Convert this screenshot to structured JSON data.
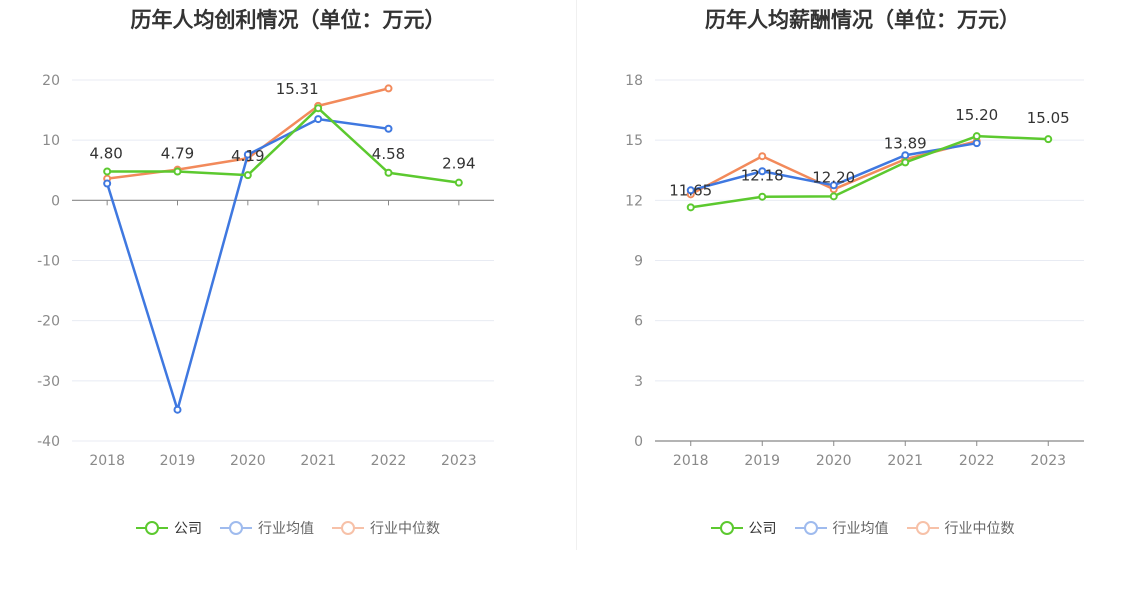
{
  "chart_data": [
    {
      "type": "line",
      "title": "历年人均创利情况（单位：万元）",
      "categories": [
        "2018",
        "2019",
        "2020",
        "2021",
        "2022",
        "2023"
      ],
      "ylim": [
        -40,
        20
      ],
      "yticks": [
        "20",
        "10",
        "0",
        "-10",
        "-20",
        "-30",
        "-40"
      ],
      "ytick_values": [
        20,
        10,
        0,
        -10,
        -20,
        -30,
        -40
      ],
      "grid": true,
      "legend_position": "bottom",
      "series": [
        {
          "name": "公司",
          "color": "#5cc92f",
          "values": [
            4.8,
            4.79,
            4.19,
            15.31,
            4.58,
            2.94
          ],
          "labels": [
            "4.80",
            "4.79",
            "4.19",
            "15.31",
            "4.58",
            "2.94"
          ]
        },
        {
          "name": "行业均值",
          "color": "#3f78e0",
          "values": [
            2.8,
            -34.8,
            7.6,
            13.5,
            11.9,
            null
          ],
          "labels": []
        },
        {
          "name": "行业中位数",
          "color": "#f28a5b",
          "values": [
            3.6,
            5.1,
            7.0,
            15.7,
            18.6,
            null
          ],
          "labels": []
        }
      ]
    },
    {
      "type": "line",
      "title": "历年人均薪酬情况（单位：万元）",
      "categories": [
        "2018",
        "2019",
        "2020",
        "2021",
        "2022",
        "2023"
      ],
      "ylim": [
        0,
        18
      ],
      "yticks": [
        "18",
        "15",
        "12",
        "9",
        "6",
        "3",
        "0"
      ],
      "ytick_values": [
        18,
        15,
        12,
        9,
        6,
        3,
        0
      ],
      "grid": true,
      "legend_position": "bottom",
      "series": [
        {
          "name": "公司",
          "color": "#5cc92f",
          "values": [
            11.65,
            12.18,
            12.2,
            13.89,
            15.2,
            15.05
          ],
          "labels": [
            "11.65",
            "12.18",
            "12.20",
            "13.89",
            "15.20",
            "15.05"
          ]
        },
        {
          "name": "行业均值",
          "color": "#3f78e0",
          "values": [
            12.5,
            13.45,
            12.75,
            14.25,
            14.85,
            null
          ],
          "labels": []
        },
        {
          "name": "行业中位数",
          "color": "#f28a5b",
          "values": [
            12.3,
            14.2,
            12.55,
            14.05,
            14.95,
            null
          ],
          "labels": []
        }
      ]
    }
  ],
  "legend": {
    "items": [
      {
        "label": "公司",
        "color": "#5cc92f"
      },
      {
        "label": "行业均值",
        "color": "#3f78e0"
      },
      {
        "label": "行业中位数",
        "color": "#f28a5b"
      }
    ]
  }
}
